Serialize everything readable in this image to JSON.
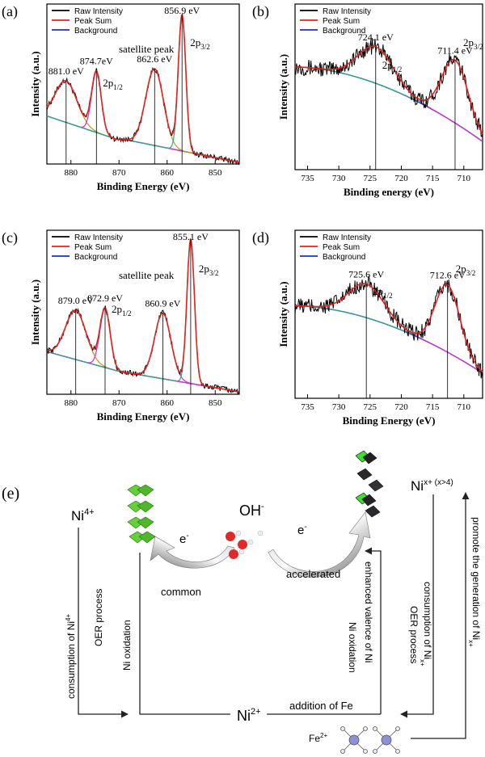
{
  "chart_data": [
    {
      "type": "line",
      "panel": "(a)",
      "legend": [
        "Raw Intensity",
        "Peak Sum",
        "Background"
      ],
      "xlabel": "Binding Energy (eV)",
      "ylabel": "Intensity (a.u.)",
      "xlim": [
        885,
        845
      ],
      "xticks": [
        880,
        870,
        860,
        850
      ],
      "peaks": [
        881.0,
        874.7,
        862.6,
        856.9
      ],
      "annotations": [
        {
          "text": "881.0 eV",
          "x": 881.0
        },
        {
          "text": "874.7eV",
          "x": 874.7
        },
        {
          "text": "862.6 eV",
          "x": 862.6
        },
        {
          "text": "856.9 eV",
          "x": 856.9
        },
        {
          "text": "satellite peak"
        },
        {
          "text": "2p",
          "sub": "1/2"
        },
        {
          "text": "2p",
          "sub": "3/2"
        }
      ]
    },
    {
      "type": "line",
      "panel": "(b)",
      "legend": [
        "Raw Intensity",
        "Peak Sum",
        "Background"
      ],
      "xlabel": "Binding energy (eV)",
      "ylabel": "Intensity (a.u.)",
      "xlim": [
        737,
        707
      ],
      "xticks": [
        735,
        730,
        725,
        720,
        715,
        710
      ],
      "peaks": [
        724.1,
        711.4
      ],
      "annotations": [
        {
          "text": "724.1 eV",
          "x": 724.1
        },
        {
          "text": "711.4 eV",
          "x": 711.4
        },
        {
          "text": "2p",
          "sub": "1/2"
        },
        {
          "text": "2p",
          "sub": "3/2"
        }
      ]
    },
    {
      "type": "line",
      "panel": "(c)",
      "legend": [
        "Raw Intensity",
        "Peak Sum",
        "Background"
      ],
      "xlabel": "Binding Energy (eV)",
      "ylabel": "Intensity (a.u.)",
      "xlim": [
        885,
        845
      ],
      "xticks": [
        880,
        870,
        860,
        850
      ],
      "peaks": [
        879.0,
        872.9,
        860.9,
        855.1
      ],
      "annotations": [
        {
          "text": "879.0 eV",
          "x": 879.0
        },
        {
          "text": "872.9 eV",
          "x": 872.9
        },
        {
          "text": "860.9 eV",
          "x": 860.9
        },
        {
          "text": "855.1 eV",
          "x": 855.1
        },
        {
          "text": "satellite peak"
        },
        {
          "text": "2p",
          "sub": "1/2"
        },
        {
          "text": "2p",
          "sub": "3/2"
        }
      ]
    },
    {
      "type": "line",
      "panel": "(d)",
      "legend": [
        "Raw Intensity",
        "Peak Sum",
        "Background"
      ],
      "xlabel": "Binding Energy (eV)",
      "ylabel": "Intensity (a.u.)",
      "xlim": [
        737,
        707
      ],
      "xticks": [
        735,
        730,
        725,
        720,
        715,
        710
      ],
      "peaks": [
        725.6,
        712.6
      ],
      "annotations": [
        {
          "text": "725.6 eV",
          "x": 725.6
        },
        {
          "text": "712.6 eV",
          "x": 712.6
        },
        {
          "text": "2p",
          "sub": "1/2"
        },
        {
          "text": "2p",
          "sub": "3/2"
        }
      ]
    }
  ],
  "colors": {
    "raw": "#000000",
    "sum": "#e8211c",
    "background": "#1f2bd0",
    "fit_a": "#d82ad0",
    "fit_b": "#2aa68a",
    "fit_c": "#b3a11c",
    "cycle": "#111111"
  },
  "scheme": {
    "panel": "(e)",
    "ni4": "Ni",
    "ni4_sup": "4+",
    "nix": "Ni",
    "nix_sup": "x+ (x>4)",
    "ni2": "Ni",
    "ni2_sup": "2+",
    "fe2": "Fe",
    "fe2_sup": "2+",
    "oh": "OH",
    "oh_sup": "-",
    "e_left": "e",
    "e_right": "e",
    "e_sup": "-",
    "common": "common",
    "accelerated": "accelerated",
    "addition_fe": "addition of Fe",
    "left_outer_label": "consumption of Ni",
    "left_outer_sup": "4+",
    "left_outer_2": "OER  process",
    "left_inner": "Ni oxidation",
    "right_inner_1": "Ni oxidation",
    "right_inner_2": "enhanced  valence of Ni",
    "right_outer_label": "consumption of Ni",
    "right_outer_sup": "x+",
    "right_outer_2": "OER  process",
    "far_right": "promote the generation of Ni",
    "far_right_sup": "x+"
  }
}
